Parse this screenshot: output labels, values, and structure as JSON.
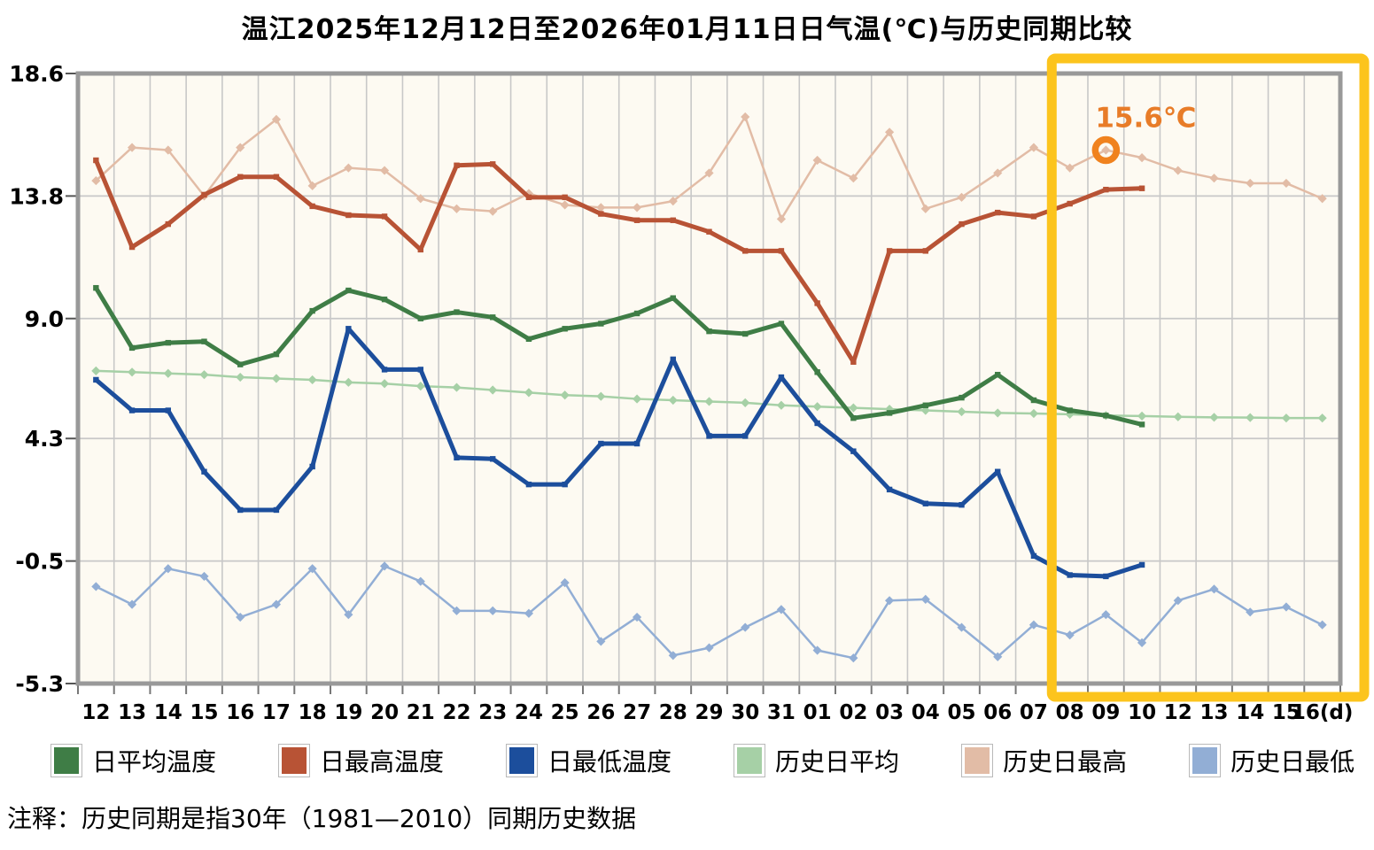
{
  "title": "温江2025年12月12日至2026年01月11日日气温(℃)与历史同期比较",
  "note": "注释：历史同期是指30年（1981—2010）同期历史数据",
  "colors": {
    "plot_background": "#fdfaf2",
    "grid": "#c8c8c8",
    "frame": "#999999",
    "axis_text": "#000000",
    "highlight_box": "#fcc41d",
    "annotation_orange": "#ed7d23"
  },
  "chart_data": {
    "type": "line",
    "title": "温江2025年12月12日至2026年01月11日日气温(℃)与历史同期比较",
    "xlabel": "(d)",
    "ylabel": "气温(℃)",
    "ylim": [
      -5.3,
      18.6
    ],
    "grid": true,
    "y_ticks": [
      18.6,
      13.8,
      9.0,
      4.3,
      -0.5,
      -5.3
    ],
    "y_tick_labels": [
      "18.6",
      "13.8",
      "9.0",
      "4.3",
      "-0.5",
      "-5.3"
    ],
    "x_labels": [
      "12",
      "13",
      "14",
      "15",
      "16",
      "17",
      "18",
      "19",
      "20",
      "21",
      "22",
      "23",
      "24",
      "25",
      "26",
      "27",
      "28",
      "29",
      "30",
      "31",
      "01",
      "02",
      "03",
      "04",
      "05",
      "06",
      "07",
      "08",
      "09",
      "10",
      "12",
      "13",
      "14",
      "15",
      "16(d)"
    ],
    "series": [
      {
        "name": "历史日最高",
        "key": "hist-max-temp",
        "color": "#e2bca6",
        "width": 2.5,
        "marker": "diamond",
        "values": [
          14.4,
          15.7,
          15.6,
          13.8,
          15.7,
          16.8,
          14.2,
          14.9,
          14.8,
          13.7,
          13.3,
          13.2,
          13.9,
          13.45,
          13.35,
          13.35,
          13.6,
          14.7,
          16.9,
          12.9,
          15.2,
          14.5,
          16.3,
          13.3,
          13.75,
          14.7,
          15.7,
          14.9,
          15.6,
          15.3,
          14.8,
          14.5,
          14.3,
          14.3,
          13.7
        ]
      },
      {
        "name": "历史日平均",
        "key": "hist-avg-temp",
        "color": "#a6d0a6",
        "width": 2.5,
        "marker": "diamond",
        "values": [
          6.95,
          6.9,
          6.85,
          6.8,
          6.7,
          6.65,
          6.6,
          6.5,
          6.45,
          6.35,
          6.3,
          6.2,
          6.1,
          6.0,
          5.95,
          5.85,
          5.8,
          5.75,
          5.7,
          5.6,
          5.55,
          5.5,
          5.45,
          5.4,
          5.35,
          5.3,
          5.28,
          5.25,
          5.2,
          5.18,
          5.15,
          5.13,
          5.12,
          5.1,
          5.1
        ]
      },
      {
        "name": "历史日最低",
        "key": "hist-min-temp",
        "color": "#92aed5",
        "width": 2.5,
        "marker": "diamond",
        "values": [
          -1.5,
          -2.2,
          -0.8,
          -1.1,
          -2.7,
          -2.2,
          -0.8,
          -2.6,
          -0.7,
          -1.3,
          -2.45,
          -2.45,
          -2.55,
          -1.35,
          -3.65,
          -2.7,
          -4.2,
          -3.9,
          -3.1,
          -2.4,
          -4.0,
          -4.3,
          -2.05,
          -2.0,
          -3.1,
          -4.25,
          -3.0,
          -3.4,
          -2.6,
          -3.7,
          -2.05,
          -1.6,
          -2.5,
          -2.3,
          -3.0
        ]
      },
      {
        "name": "日平均温度",
        "key": "daily-avg-temp",
        "color": "#3f7d46",
        "width": 5,
        "marker": "square",
        "values": [
          10.2,
          7.85,
          8.05,
          8.1,
          7.2,
          7.6,
          9.3,
          10.1,
          9.75,
          9.0,
          9.25,
          9.05,
          8.2,
          8.6,
          8.8,
          9.2,
          9.8,
          8.5,
          8.4,
          8.8,
          6.9,
          5.1,
          5.3,
          5.6,
          5.9,
          6.8,
          5.8,
          5.4,
          5.2,
          4.85
        ]
      },
      {
        "name": "日最高温度",
        "key": "daily-max-temp",
        "color": "#b85335",
        "width": 5,
        "marker": "square",
        "values": [
          15.2,
          11.8,
          12.7,
          13.85,
          14.55,
          14.55,
          13.4,
          13.05,
          13.0,
          11.7,
          15.0,
          15.05,
          13.75,
          13.75,
          13.1,
          12.85,
          12.85,
          12.4,
          11.65,
          11.65,
          9.6,
          7.3,
          11.65,
          11.65,
          12.7,
          13.15,
          13.0,
          13.5,
          14.05,
          14.1
        ]
      },
      {
        "name": "日最低温度",
        "key": "daily-min-temp",
        "color": "#1c4e9c",
        "width": 5,
        "marker": "square",
        "values": [
          6.6,
          5.4,
          5.4,
          3.0,
          1.5,
          1.5,
          3.2,
          8.6,
          7.0,
          7.0,
          3.55,
          3.5,
          2.5,
          2.5,
          4.1,
          4.1,
          7.4,
          4.4,
          4.4,
          6.7,
          4.9,
          3.8,
          2.3,
          1.75,
          1.7,
          3.0,
          -0.3,
          -1.05,
          -1.1,
          -0.65
        ]
      }
    ],
    "annotation": {
      "text": "15.6℃",
      "series": "历史日最高",
      "index": 28,
      "value": 15.6,
      "x_label": "09",
      "ring_color": "#f0821e",
      "text_color": "#e87c28"
    },
    "highlight_box": {
      "from_column": 27,
      "from_x_label": "08",
      "to_x_label": "16(d)",
      "color": "#fcc41d"
    },
    "legend_position": "bottom"
  },
  "legend": {
    "items": [
      {
        "label": "日平均温度",
        "color": "#3f7d46"
      },
      {
        "label": "日最高温度",
        "color": "#b85335"
      },
      {
        "label": "日最低温度",
        "color": "#1c4e9c"
      },
      {
        "label": "历史日平均",
        "color": "#a6d0a6"
      },
      {
        "label": "历史日最高",
        "color": "#e2bca6"
      },
      {
        "label": "历史日最低",
        "color": "#92aed5"
      }
    ]
  }
}
